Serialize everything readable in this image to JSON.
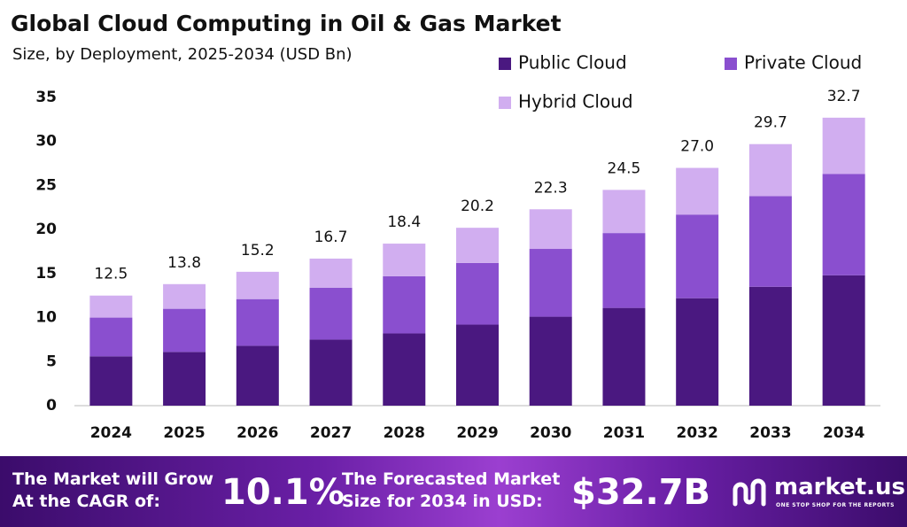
{
  "chart_data": {
    "type": "stacked_bar",
    "title": "Global Cloud Computing in Oil & Gas Market",
    "subtitle": "Size, by Deployment, 2025-2034 (USD Bn)",
    "categories": [
      "2024",
      "2025",
      "2026",
      "2027",
      "2028",
      "2029",
      "2030",
      "2031",
      "2032",
      "2033",
      "2034"
    ],
    "series": [
      {
        "name": "Public Cloud",
        "color": "#4a1880",
        "values": [
          5.6,
          6.1,
          6.8,
          7.5,
          8.2,
          9.2,
          10.1,
          11.1,
          12.2,
          13.5,
          14.8
        ]
      },
      {
        "name": "Private Cloud",
        "color": "#8a4fcf",
        "values": [
          4.4,
          4.9,
          5.3,
          5.9,
          6.5,
          7.0,
          7.7,
          8.5,
          9.5,
          10.3,
          11.5
        ]
      },
      {
        "name": "Hybrid Cloud",
        "color": "#d1aef0",
        "values": [
          2.5,
          2.8,
          3.1,
          3.3,
          3.7,
          4.0,
          4.5,
          4.9,
          5.3,
          5.9,
          6.4
        ]
      }
    ],
    "totals": {
      "values": [
        12.5,
        13.8,
        15.2,
        16.7,
        18.4,
        20.2,
        22.3,
        24.5,
        27.0,
        29.7,
        32.7
      ],
      "value_labels": [
        "12.5",
        "13.8",
        "15.2",
        "16.7",
        "18.4",
        "20.2",
        "22.3",
        "24.5",
        "27.0",
        "29.7",
        "32.7"
      ]
    },
    "ylim": [
      0,
      35
    ],
    "yticks": [
      0,
      5,
      10,
      15,
      20,
      25,
      30,
      35
    ],
    "grid": false
  },
  "footer": {
    "cagr_text": [
      "The Market will Grow",
      "At the CAGR of:"
    ],
    "cagr_value": "10.1%",
    "forecast_text": [
      "The Forecasted Market",
      "Size for 2034 in USD:"
    ],
    "forecast_value": "$32.7B",
    "brand": "market.us",
    "tagline": "ONE STOP SHOP FOR THE REPORTS"
  }
}
